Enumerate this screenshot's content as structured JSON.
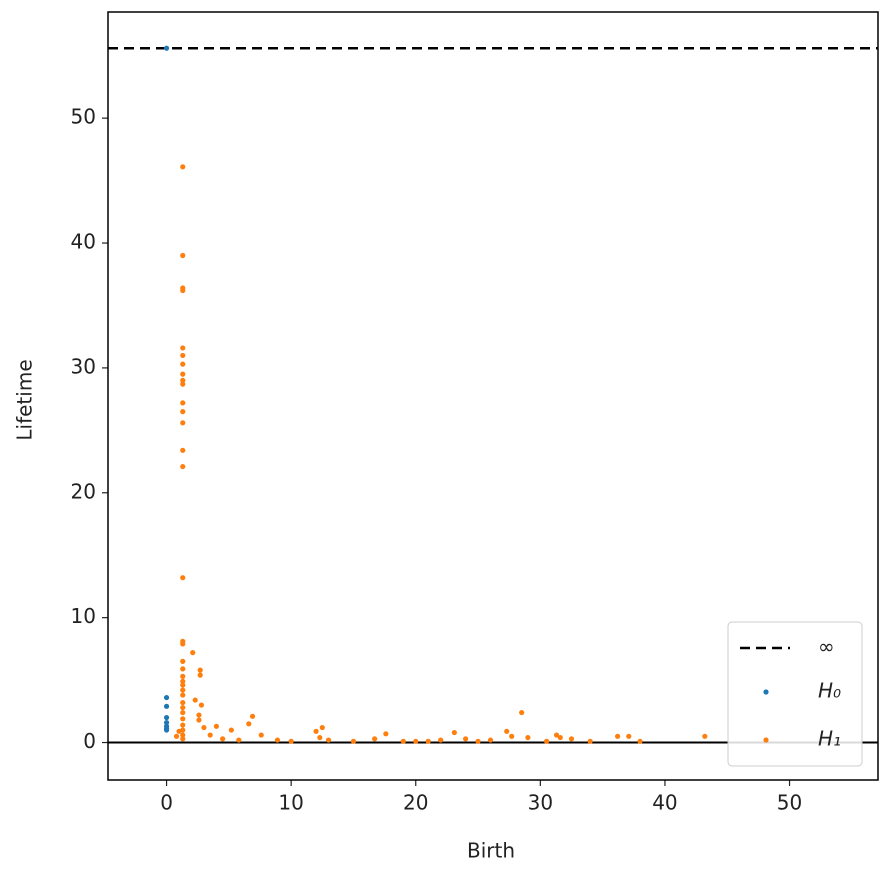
{
  "chart_data": {
    "type": "scatter",
    "xlabel": "Birth",
    "ylabel": "Lifetime",
    "xlim": [
      -4.7,
      57.1
    ],
    "ylim": [
      -3.0,
      58.5
    ],
    "xticks": [
      0,
      10,
      20,
      30,
      40,
      50
    ],
    "yticks": [
      0,
      10,
      20,
      30,
      40,
      50
    ],
    "baseline": 0,
    "infinity_line": {
      "name": "∞",
      "value": 55.6,
      "color": "#000000"
    },
    "legend": "lower right",
    "series": [
      {
        "name": "H₀",
        "color": "#1f77b4",
        "x": [
          0,
          0,
          0,
          0,
          0,
          0,
          0,
          0
        ],
        "values": [
          55.6,
          3.6,
          2.9,
          2.0,
          1.6,
          1.3,
          1.1,
          1.0
        ]
      },
      {
        "name": "H₁",
        "color": "#ff7f0e",
        "x": [
          1.3,
          1.3,
          1.3,
          1.3,
          1.3,
          1.3,
          1.3,
          1.3,
          1.3,
          1.3,
          1.3,
          1.3,
          1.3,
          1.3,
          1.3,
          1.3,
          1.3,
          1.3,
          1.3,
          1.3,
          1.3,
          1.3,
          1.3,
          1.3,
          1.3,
          1.3,
          1.3,
          1.3,
          1.3,
          1.3,
          1.3,
          1.3,
          1.3,
          2.1,
          2.7,
          2.7,
          2.3,
          2.8,
          2.6,
          2.6,
          3.0,
          3.5,
          4.0,
          5.2,
          6.9,
          6.6,
          7.6,
          8.9,
          12.0,
          12.5,
          12.3,
          13.0,
          15.0,
          16.7,
          17.6,
          19.0,
          21.0,
          23.1,
          24.0,
          25.0,
          26.0,
          27.3,
          27.7,
          28.5,
          29.0,
          30.5,
          31.3,
          31.6,
          32.5,
          34.0,
          36.2,
          37.1,
          38.0,
          43.2,
          0.8,
          1.0,
          4.5,
          5.8,
          10.0,
          20.0,
          22.0
        ],
        "values": [
          46.1,
          39.0,
          36.4,
          36.2,
          31.6,
          31.0,
          30.3,
          29.5,
          29.0,
          28.7,
          27.2,
          26.5,
          25.6,
          23.4,
          22.1,
          13.2,
          8.1,
          7.9,
          6.5,
          5.9,
          5.3,
          4.9,
          4.6,
          4.2,
          3.8,
          3.2,
          2.8,
          2.4,
          1.9,
          1.4,
          1.0,
          0.6,
          0.3,
          7.2,
          5.8,
          5.4,
          3.4,
          3.0,
          2.2,
          1.8,
          1.2,
          0.6,
          1.3,
          1.0,
          2.1,
          1.5,
          0.6,
          0.2,
          0.9,
          1.2,
          0.4,
          0.2,
          0.1,
          0.3,
          0.7,
          0.1,
          0.1,
          0.8,
          0.3,
          0.1,
          0.2,
          0.9,
          0.5,
          2.4,
          0.4,
          0.1,
          0.6,
          0.4,
          0.3,
          0.1,
          0.5,
          0.5,
          0.1,
          0.5,
          0.5,
          0.9,
          0.3,
          0.2,
          0.1,
          0.1,
          0.2
        ]
      }
    ]
  }
}
